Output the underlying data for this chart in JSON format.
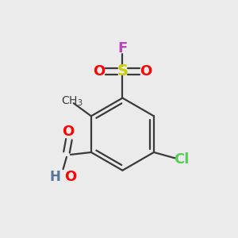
{
  "background_color": "#EBEBEB",
  "fig_size": [
    3.0,
    3.0
  ],
  "dpi": 100,
  "bond_color": "#3a3a3a",
  "bond_lw": 1.6,
  "colors": {
    "S": "#cccc00",
    "O": "#ff0000",
    "F": "#bb44bb",
    "Cl": "#55cc55",
    "C": "#3a3a3a",
    "H": "#557799"
  },
  "font_size_atom": 12,
  "font_size_small": 10
}
